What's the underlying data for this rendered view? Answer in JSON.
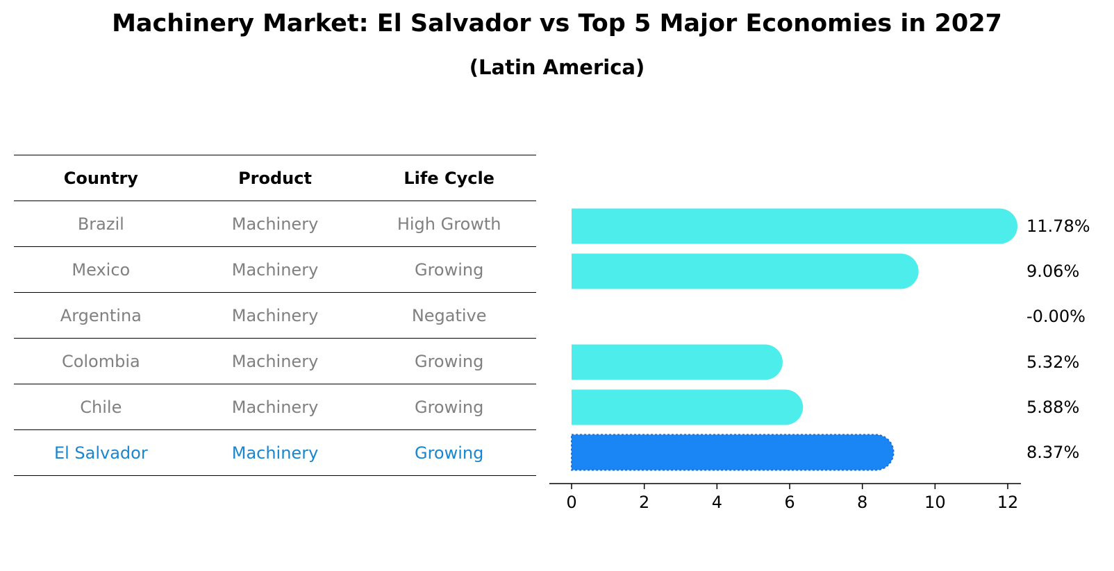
{
  "title": "Machinery Market: El Salvador vs Top 5 Major Economies in 2027",
  "subtitle": "(Latin America)",
  "table": {
    "headers": [
      "Country",
      "Product",
      "Life Cycle"
    ],
    "rows": [
      {
        "country": "Brazil",
        "product": "Machinery",
        "life_cycle": "High Growth"
      },
      {
        "country": "Mexico",
        "product": "Machinery",
        "life_cycle": "Growing"
      },
      {
        "country": "Argentina",
        "product": "Machinery",
        "life_cycle": "Negative"
      },
      {
        "country": "Colombia",
        "product": "Machinery",
        "life_cycle": "Growing"
      },
      {
        "country": "Chile",
        "product": "Machinery",
        "life_cycle": "Growing"
      },
      {
        "country": "El Salvador",
        "product": "Machinery",
        "life_cycle": "Growing"
      }
    ],
    "highlight_color": "#1a86d0",
    "text_color": "#808080"
  },
  "chart_data": {
    "type": "bar",
    "orientation": "horizontal",
    "categories": [
      "Brazil",
      "Mexico",
      "Argentina",
      "Colombia",
      "Chile",
      "El Salvador"
    ],
    "values": [
      11.78,
      9.06,
      -0.0,
      5.32,
      5.88,
      8.37
    ],
    "labels": [
      "11.78%",
      "9.06%",
      "-0.00%",
      "5.32%",
      "5.88%",
      "8.37%"
    ],
    "highlight": "El Salvador",
    "colors": {
      "default": "#4dedeb",
      "highlight": "#1a86f5"
    },
    "xlim": [
      -0.6,
      12.4
    ],
    "xticks": [
      0,
      2,
      4,
      6,
      8,
      10,
      12
    ],
    "grid": false
  }
}
